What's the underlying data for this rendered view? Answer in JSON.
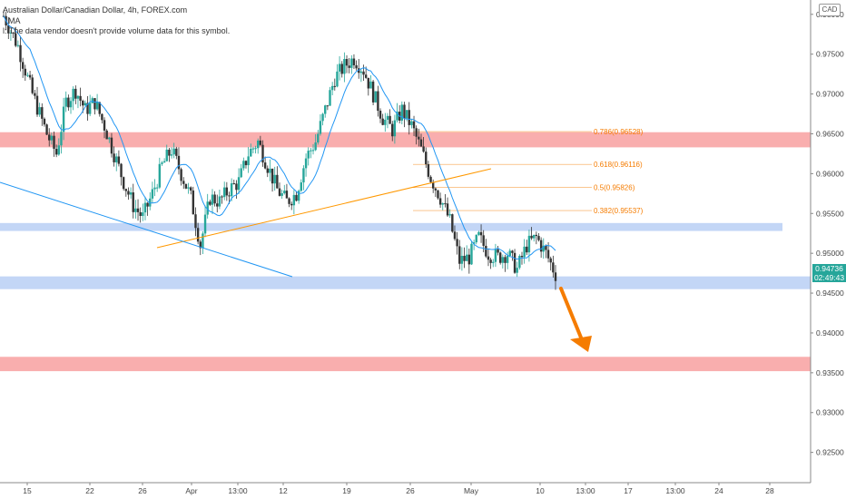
{
  "header": {
    "symbol_line": "Australian Dollar/Canadian Dollar, 4h, FOREX.com",
    "ma_label": "MA",
    "volume_note": "l: The data vendor doesn't provide volume data for this symbol."
  },
  "currency": "CAD",
  "current_price": "0.94736",
  "countdown": "02:49:43",
  "colors": {
    "up": "#26a69a",
    "down": "#333333",
    "ma": "#2196f3",
    "resistance_zone": "#f8a0a0",
    "support_zone": "#b8cff5",
    "trendline_orange": "#ff9800",
    "trendline_blue": "#2196f3",
    "arrow": "#f57c00"
  },
  "chart_data": {
    "type": "candlestick",
    "title": "Australian Dollar/Canadian Dollar, 4h, FOREX.com",
    "xlabel": "",
    "ylabel": "",
    "ylim": [
      0.9212,
      0.9818
    ],
    "yticks": [
      "0.92500",
      "0.93000",
      "0.93500",
      "0.94000",
      "0.94500",
      "0.95000",
      "0.95500",
      "0.96000",
      "0.96500",
      "0.97000",
      "0.97500",
      "0.98000"
    ],
    "xticks": [
      "15",
      "22",
      "26",
      "Apr",
      "13:00",
      "12",
      "19",
      "26",
      "May",
      "10",
      "13:00",
      "17",
      "13:00",
      "24",
      "28"
    ],
    "close_path": [
      [
        0,
        0.9798
      ],
      [
        3,
        0.976
      ],
      [
        6,
        0.97
      ],
      [
        9,
        0.965
      ],
      [
        11,
        0.9625
      ],
      [
        13,
        0.969
      ],
      [
        15,
        0.9705
      ],
      [
        17,
        0.968
      ],
      [
        19,
        0.969
      ],
      [
        21,
        0.966
      ],
      [
        23,
        0.9625
      ],
      [
        25,
        0.959
      ],
      [
        27,
        0.956
      ],
      [
        29,
        0.9545
      ],
      [
        31,
        0.9575
      ],
      [
        33,
        0.961
      ],
      [
        35,
        0.963
      ],
      [
        37,
        0.96
      ],
      [
        39,
        0.957
      ],
      [
        41,
        0.951
      ],
      [
        43,
        0.957
      ],
      [
        45,
        0.9565
      ],
      [
        47,
        0.958
      ],
      [
        49,
        0.959
      ],
      [
        51,
        0.9625
      ],
      [
        53,
        0.964
      ],
      [
        55,
        0.961
      ],
      [
        57,
        0.958
      ],
      [
        59,
        0.9565
      ],
      [
        61,
        0.9575
      ],
      [
        63,
        0.962
      ],
      [
        65,
        0.964
      ],
      [
        67,
        0.968
      ],
      [
        69,
        0.972
      ],
      [
        71,
        0.9735
      ],
      [
        73,
        0.9745
      ],
      [
        75,
        0.973
      ],
      [
        77,
        0.97
      ],
      [
        79,
        0.967
      ],
      [
        81,
        0.9655
      ],
      [
        83,
        0.968
      ],
      [
        85,
        0.966
      ],
      [
        87,
        0.963
      ],
      [
        89,
        0.9595
      ],
      [
        91,
        0.957
      ],
      [
        93,
        0.954
      ],
      [
        95,
        0.949
      ],
      [
        97,
        0.9495
      ],
      [
        99,
        0.952
      ],
      [
        101,
        0.95
      ],
      [
        103,
        0.9495
      ],
      [
        105,
        0.95
      ],
      [
        107,
        0.948
      ],
      [
        109,
        0.951
      ],
      [
        111,
        0.952
      ],
      [
        113,
        0.95
      ],
      [
        115,
        0.9474
      ]
    ],
    "moving_average": {
      "name": "MA"
    },
    "zones": [
      {
        "kind": "resistance",
        "from": 0.9633,
        "to": 0.9652
      },
      {
        "kind": "support",
        "from": 0.9528,
        "to": 0.9538
      },
      {
        "kind": "support",
        "from": 0.9455,
        "to": 0.9471
      },
      {
        "kind": "resistance",
        "from": 0.9352,
        "to": 0.937
      }
    ],
    "fibonacci": [
      {
        "label": "0.786(0.96528)",
        "value": 0.96528
      },
      {
        "label": "0.618(0.96116)",
        "value": 0.96116
      },
      {
        "label": "0.5(0.95826)",
        "value": 0.95826
      },
      {
        "label": "0.382(0.95537)",
        "value": 0.95537
      }
    ],
    "trendlines": [
      {
        "color": "orange",
        "from": [
          0.95,
          0.95
        ],
        "to": [
          0.96,
          0.96
        ]
      },
      {
        "color": "blue"
      }
    ],
    "projection_arrow": {
      "direction": "down"
    },
    "last_price": 0.94736
  }
}
